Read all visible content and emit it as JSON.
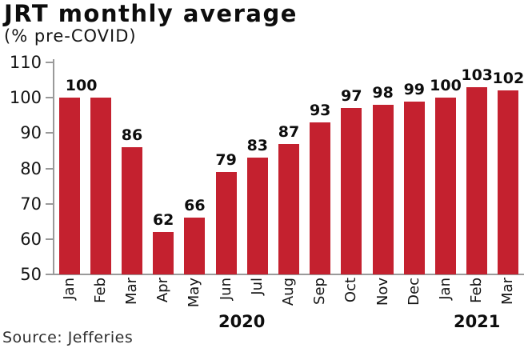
{
  "title": "JRT monthly average",
  "subtitle": "(% pre-COVID)",
  "source": "Source: Jefferies",
  "colors": {
    "bar": "#c4212f",
    "axis": "#9a9a9a",
    "text": "#0d0d0d"
  },
  "chart_data": {
    "type": "bar",
    "title": "JRT monthly average",
    "subtitle": "(% pre-COVID)",
    "xlabel": "",
    "ylabel": "",
    "categories": [
      "Jan",
      "Feb",
      "Mar",
      "Apr",
      "May",
      "Jun",
      "Jul",
      "Aug",
      "Sep",
      "Oct",
      "Nov",
      "Dec",
      "Jan",
      "Feb",
      "Mar"
    ],
    "values": [
      100,
      100,
      86,
      62,
      66,
      79,
      83,
      87,
      93,
      97,
      98,
      99,
      100,
      103,
      102
    ],
    "bar_labels": [
      "100",
      "",
      "86",
      "62",
      "66",
      "79",
      "83",
      "87",
      "93",
      "97",
      "98",
      "99",
      "100",
      "103",
      "102"
    ],
    "year_groups": [
      {
        "label": "2020",
        "months": 12
      },
      {
        "label": "2021",
        "months": 3
      }
    ],
    "ylim": [
      50,
      110
    ],
    "yticks": [
      110,
      100,
      90,
      80,
      70,
      60,
      50
    ],
    "grid": false,
    "legend": "none",
    "bar_color": "#c4212f"
  }
}
